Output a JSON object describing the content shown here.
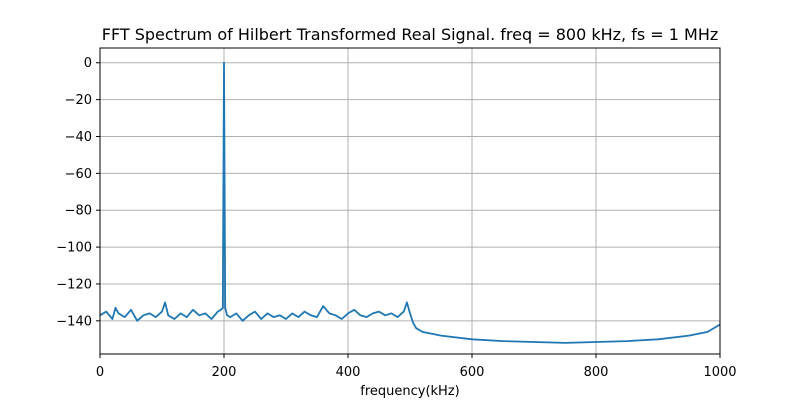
{
  "chart_data": {
    "type": "line",
    "title": "FFT Spectrum of Hilbert Transformed Real Signal. freq = 800 kHz, fs = 1 MHz",
    "xlabel": "frequency(kHz)",
    "ylabel": "",
    "xlim": [
      0,
      1000
    ],
    "ylim": [
      -158,
      8
    ],
    "xticks": [
      0,
      200,
      400,
      600,
      800,
      1000
    ],
    "xtick_labels": [
      "0",
      "200",
      "400",
      "600",
      "800",
      "1000"
    ],
    "yticks": [
      0,
      -20,
      -40,
      -60,
      -80,
      -100,
      -120,
      -140
    ],
    "ytick_labels": [
      "0",
      "−20",
      "−40",
      "−60",
      "−80",
      "−100",
      "−120",
      "−140"
    ],
    "grid": true,
    "line_color": "#1f77b4",
    "series": [
      {
        "x": [
          0,
          10,
          20,
          25,
          30,
          40,
          50,
          60,
          70,
          80,
          90,
          100,
          105,
          110,
          120,
          130,
          140,
          150,
          160,
          170,
          180,
          190,
          195,
          198,
          200,
          202,
          205,
          210,
          220,
          230,
          240,
          250,
          260,
          270,
          280,
          290,
          300,
          310,
          320,
          330,
          340,
          350,
          360,
          370,
          380,
          390,
          400,
          410,
          420,
          430,
          440,
          450,
          460,
          470,
          480,
          490,
          495,
          500,
          505,
          510,
          520,
          550,
          600,
          650,
          700,
          750,
          800,
          850,
          900,
          950,
          980,
          1000
        ],
        "y": [
          -137,
          -135,
          -139,
          -133,
          -136,
          -138,
          -134,
          -140,
          -137,
          -136,
          -138,
          -135,
          -130,
          -137,
          -139,
          -136,
          -138,
          -134,
          -137,
          -136,
          -139,
          -135,
          -134,
          -133,
          0,
          -133,
          -137,
          -138,
          -136,
          -140,
          -137,
          -135,
          -139,
          -136,
          -138,
          -137,
          -139,
          -136,
          -138,
          -135,
          -137,
          -138,
          -132,
          -136,
          -137,
          -139,
          -136,
          -134,
          -137,
          -138,
          -136,
          -135,
          -137,
          -136,
          -138,
          -135,
          -130,
          -136,
          -141,
          -144,
          -146,
          -148,
          -150,
          -151,
          -151.5,
          -152,
          -151.5,
          -151,
          -150,
          -148,
          -146,
          -142
        ]
      }
    ]
  }
}
